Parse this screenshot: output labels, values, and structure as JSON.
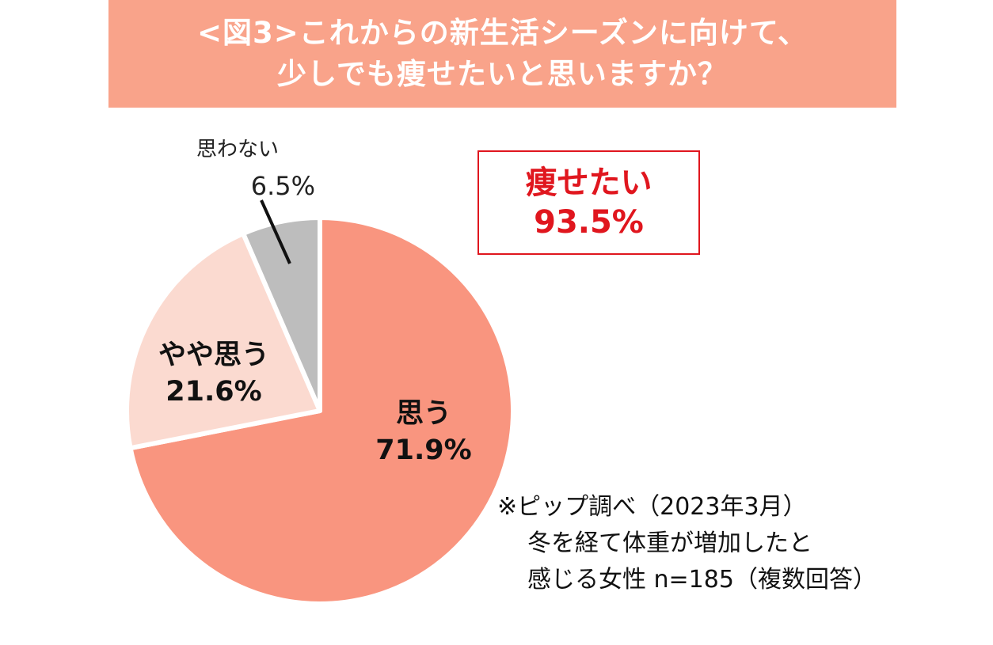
{
  "header": {
    "title_line1": "<図3>これからの新生活シーズンに向けて、",
    "title_line2": "少しでも痩せたいと思いますか？"
  },
  "callout": {
    "label": "痩せたい",
    "value": "93.5%",
    "color": "#e0161e"
  },
  "note": {
    "line1": "※ピップ調べ（2023年3月）",
    "line2": "冬を経て体重が増加したと",
    "line3": "感じる女性 n=185（複数回答）"
  },
  "chart_data": {
    "type": "pie",
    "title": "",
    "slices": [
      {
        "name": "思う",
        "value": 71.9,
        "label": "71.9%",
        "color": "#f9957f"
      },
      {
        "name": "やや思う",
        "value": 21.6,
        "label": "21.6%",
        "color": "#fbdad0"
      },
      {
        "name": "思わない",
        "value": 6.5,
        "label": "6.5%",
        "color": "#bdbdbd"
      }
    ],
    "start_angle": "12 o'clock",
    "direction": "clockwise",
    "legend": "none"
  }
}
